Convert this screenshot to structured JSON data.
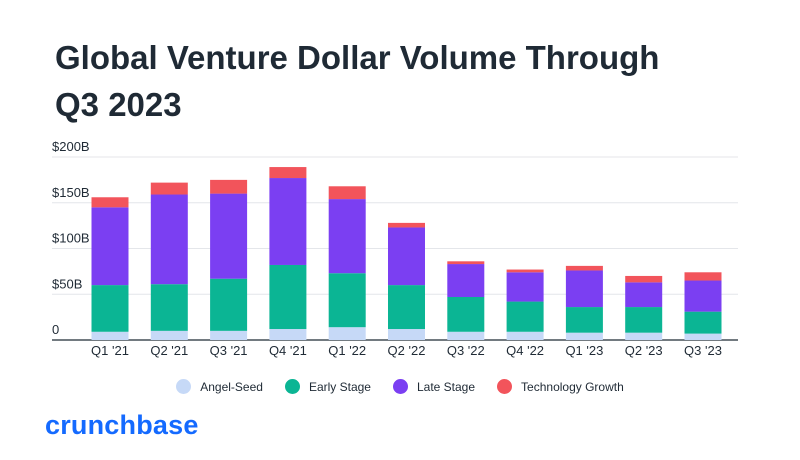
{
  "title": {
    "line1": "Global Venture Dollar Volume Through",
    "line2": "Q3 2023"
  },
  "brand": {
    "name": "crunchbase"
  },
  "chart_data": {
    "type": "bar",
    "stacked": true,
    "title": "Global Venture Dollar Volume Through Q3 2023",
    "xlabel": "",
    "ylabel": "",
    "ylim": [
      0,
      200
    ],
    "y_ticks": [
      {
        "value": 0,
        "label": "0"
      },
      {
        "value": 50,
        "label": "$50B"
      },
      {
        "value": 100,
        "label": "$100B"
      },
      {
        "value": 150,
        "label": "$150B"
      },
      {
        "value": 200,
        "label": "$200B"
      }
    ],
    "grid": true,
    "legend_position": "bottom-center",
    "categories": [
      "Q1 '21",
      "Q2 '21",
      "Q3 '21",
      "Q4 '21",
      "Q1 '22",
      "Q2 '22",
      "Q3 '22",
      "Q4 '22",
      "Q1 '23",
      "Q2 '23",
      "Q3 '23"
    ],
    "series": [
      {
        "name": "Angel-Seed",
        "color": "#c6d9f7",
        "values": [
          9,
          10,
          10,
          12,
          14,
          12,
          9,
          9,
          8,
          8,
          7
        ]
      },
      {
        "name": "Early Stage",
        "color": "#0bb594",
        "values": [
          51,
          51,
          57,
          70,
          59,
          48,
          38,
          33,
          28,
          28,
          24
        ]
      },
      {
        "name": "Late Stage",
        "color": "#7b3ff2",
        "values": [
          85,
          98,
          93,
          95,
          81,
          63,
          36,
          32,
          40,
          27,
          34
        ]
      },
      {
        "name": "Technology Growth",
        "color": "#f2545b",
        "values": [
          11,
          13,
          15,
          12,
          14,
          5,
          3,
          3,
          5,
          7,
          9
        ]
      }
    ]
  }
}
